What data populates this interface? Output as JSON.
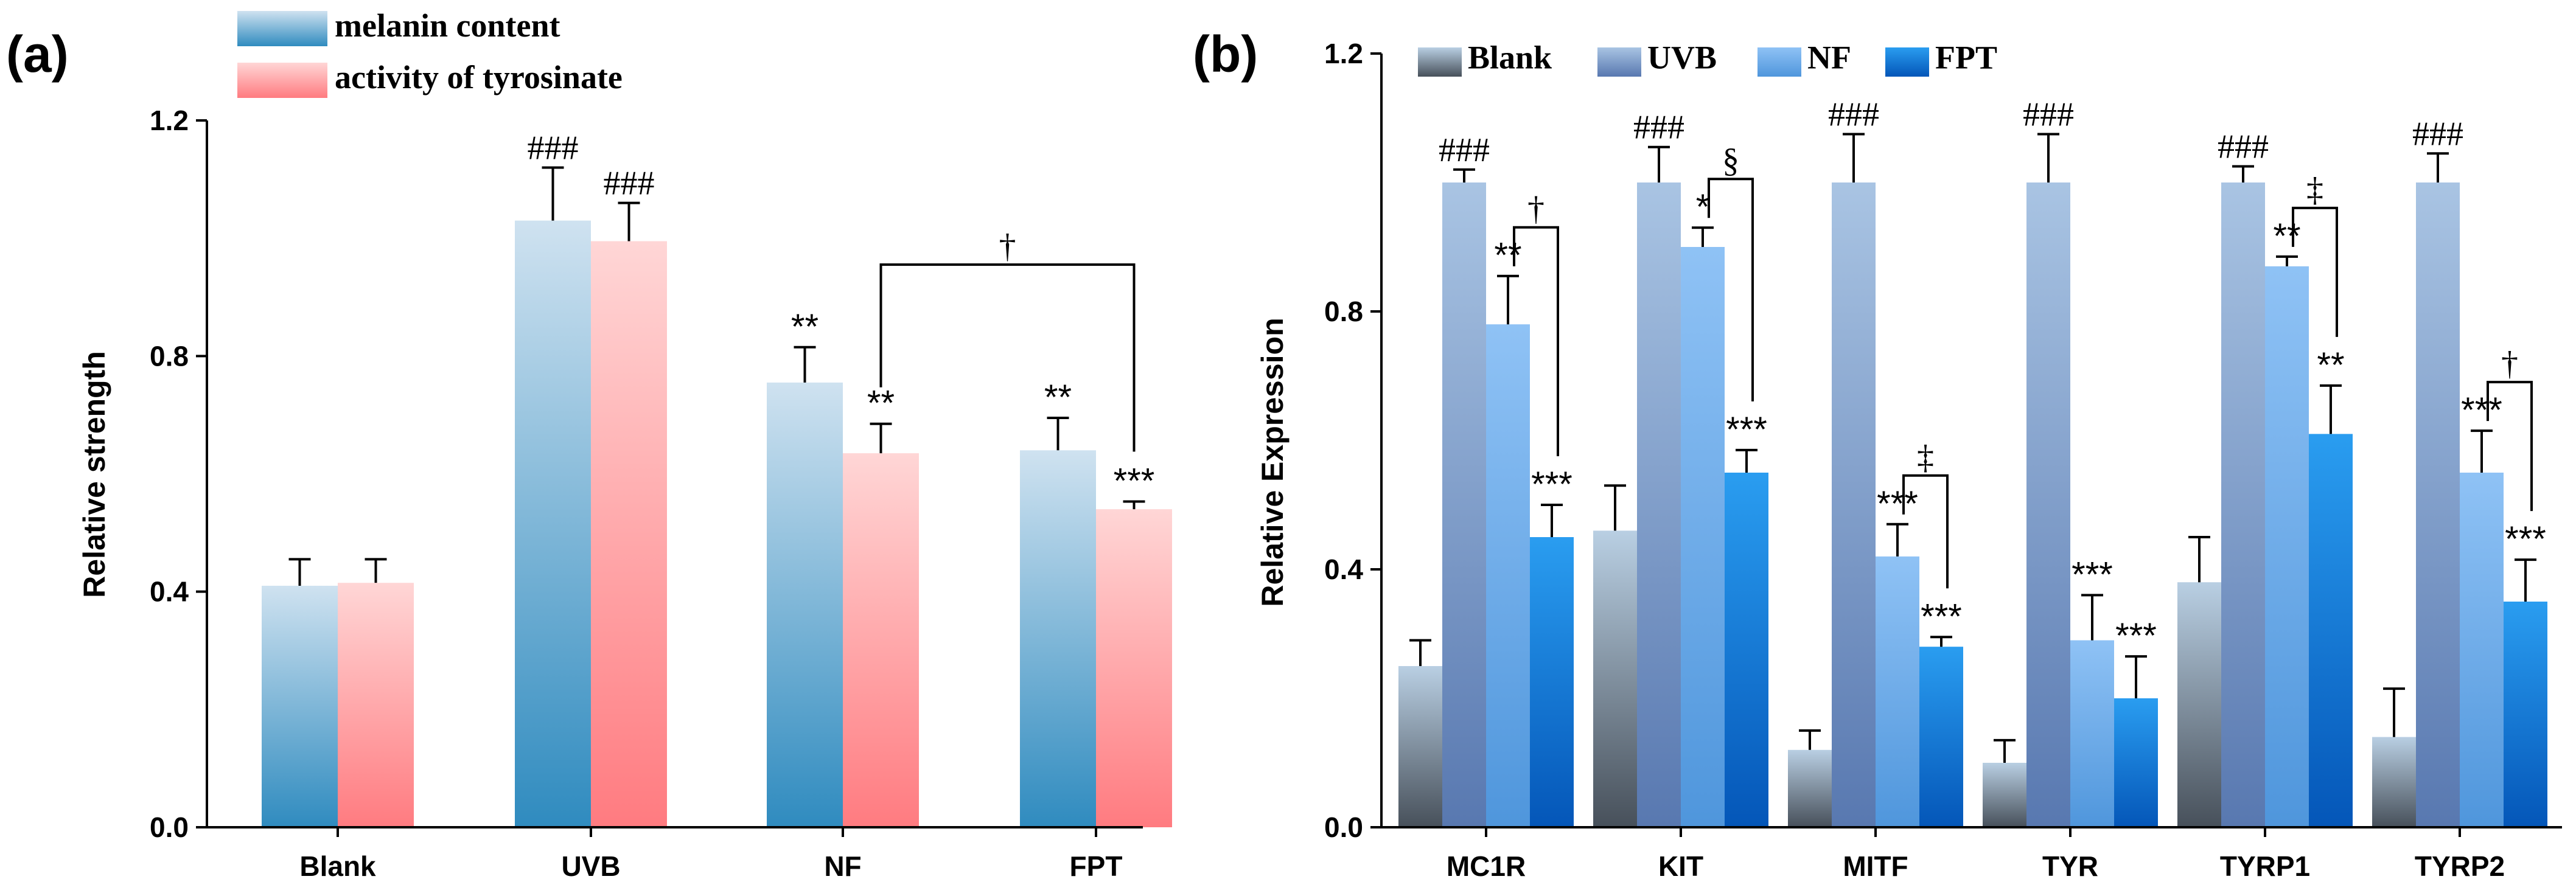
{
  "chart_data": [
    {
      "panel": "(a)",
      "type": "bar",
      "ylabel": "Relative strength",
      "ylim": [
        0,
        1.2
      ],
      "yticks": [
        "0.0",
        "0.4",
        "0.8",
        "1.2"
      ],
      "categories": [
        "Blank",
        "UVB",
        "NF",
        "FPT"
      ],
      "series": [
        {
          "name": "melanin content",
          "values": [
            0.41,
            1.03,
            0.755,
            0.64
          ],
          "errors": [
            0.045,
            0.09,
            0.06,
            0.055
          ],
          "annotations": [
            "",
            "###",
            "**",
            "**"
          ],
          "grad": [
            "#cfe2f0",
            "#2f8bbf"
          ]
        },
        {
          "name": "activity of tyrosinate",
          "values": [
            0.415,
            0.995,
            0.635,
            0.54
          ],
          "errors": [
            0.04,
            0.065,
            0.05,
            0.013
          ],
          "annotations": [
            "",
            "###",
            "**",
            "***"
          ],
          "grad": [
            "#ffd6d6",
            "#ff7b80"
          ]
        }
      ],
      "brackets": [
        {
          "series": 1,
          "from": 2,
          "to": 3,
          "symbol": "†"
        }
      ],
      "legend": [
        "melanin content",
        "activity of tyrosinate"
      ]
    },
    {
      "panel": "(b)",
      "type": "bar",
      "ylabel": "Relative Expression",
      "ylim": [
        0,
        1.2
      ],
      "yticks": [
        "0.0",
        "0.4",
        "0.8",
        "1.2"
      ],
      "categories": [
        "MC1R",
        "KIT",
        "MITF",
        "TYR",
        "TYRP1",
        "TYRP2"
      ],
      "series": [
        {
          "name": "Blank",
          "values": [
            0.25,
            0.46,
            0.12,
            0.1,
            0.38,
            0.14
          ],
          "errors": [
            0.04,
            0.07,
            0.03,
            0.035,
            0.07,
            0.075
          ],
          "annotations": [
            "",
            "",
            "",
            "",
            "",
            ""
          ],
          "grad": [
            "#b9cfe3",
            "#47505a"
          ]
        },
        {
          "name": "UVB",
          "values": [
            1.0,
            1.0,
            1.0,
            1.0,
            1.0,
            1.0
          ],
          "errors": [
            0.02,
            0.055,
            0.075,
            0.075,
            0.025,
            0.045
          ],
          "annotations": [
            "###",
            "###",
            "###",
            "###",
            "###",
            "###"
          ],
          "grad": [
            "#a9c4e3",
            "#5878b0"
          ]
        },
        {
          "name": "NF",
          "values": [
            0.78,
            0.9,
            0.42,
            0.29,
            0.87,
            0.55
          ],
          "errors": [
            0.075,
            0.03,
            0.05,
            0.07,
            0.015,
            0.065
          ],
          "annotations": [
            "**",
            "*",
            "***",
            "***",
            "**",
            "***"
          ],
          "grad": [
            "#8fc2f5",
            "#4f96dc"
          ]
        },
        {
          "name": "FPT",
          "values": [
            0.45,
            0.55,
            0.28,
            0.2,
            0.61,
            0.35
          ],
          "errors": [
            0.05,
            0.035,
            0.015,
            0.065,
            0.075,
            0.065
          ],
          "annotations": [
            "***",
            "***",
            "***",
            "***",
            "**",
            "***"
          ],
          "grad": [
            "#2a9df0",
            "#0456b8"
          ]
        }
      ],
      "brackets": [
        {
          "category": 0,
          "symbol": "†"
        },
        {
          "category": 1,
          "symbol": "§"
        },
        {
          "category": 2,
          "symbol": "‡"
        },
        {
          "category": 4,
          "symbol": "‡"
        },
        {
          "category": 5,
          "symbol": "†"
        }
      ],
      "legend": [
        "Blank",
        "UVB",
        "NF",
        "FPT"
      ]
    }
  ]
}
